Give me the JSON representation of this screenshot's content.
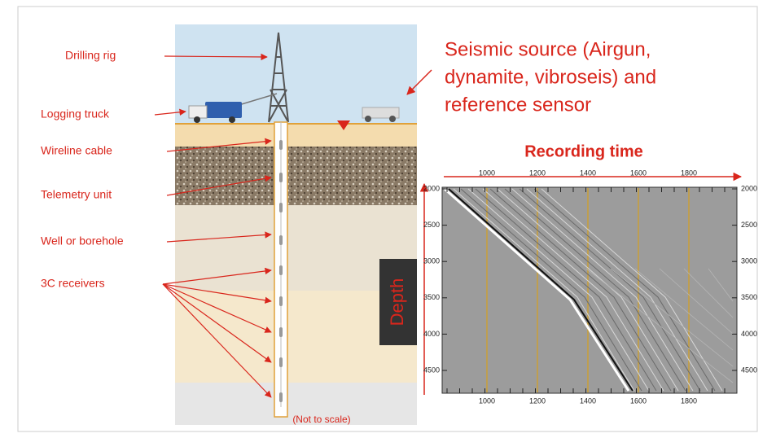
{
  "labels": [
    "Drilling rig",
    "Logging truck",
    "Wireline cable",
    "Telemetry unit",
    "Well or borehole",
    "3C receivers"
  ],
  "source": [
    "Seismic source (Airgun,",
    "dynamite, vibroseis) and",
    "reference sensor"
  ],
  "recording_time": "Recording time",
  "depth": "Depth",
  "not_to_scale": "(Not to scale)",
  "axes": {
    "time_ticks": [
      1000,
      1200,
      1400,
      1600,
      1800
    ],
    "depth_ticks": [
      2000,
      2500,
      3000,
      3500,
      4000,
      4500
    ]
  }
}
